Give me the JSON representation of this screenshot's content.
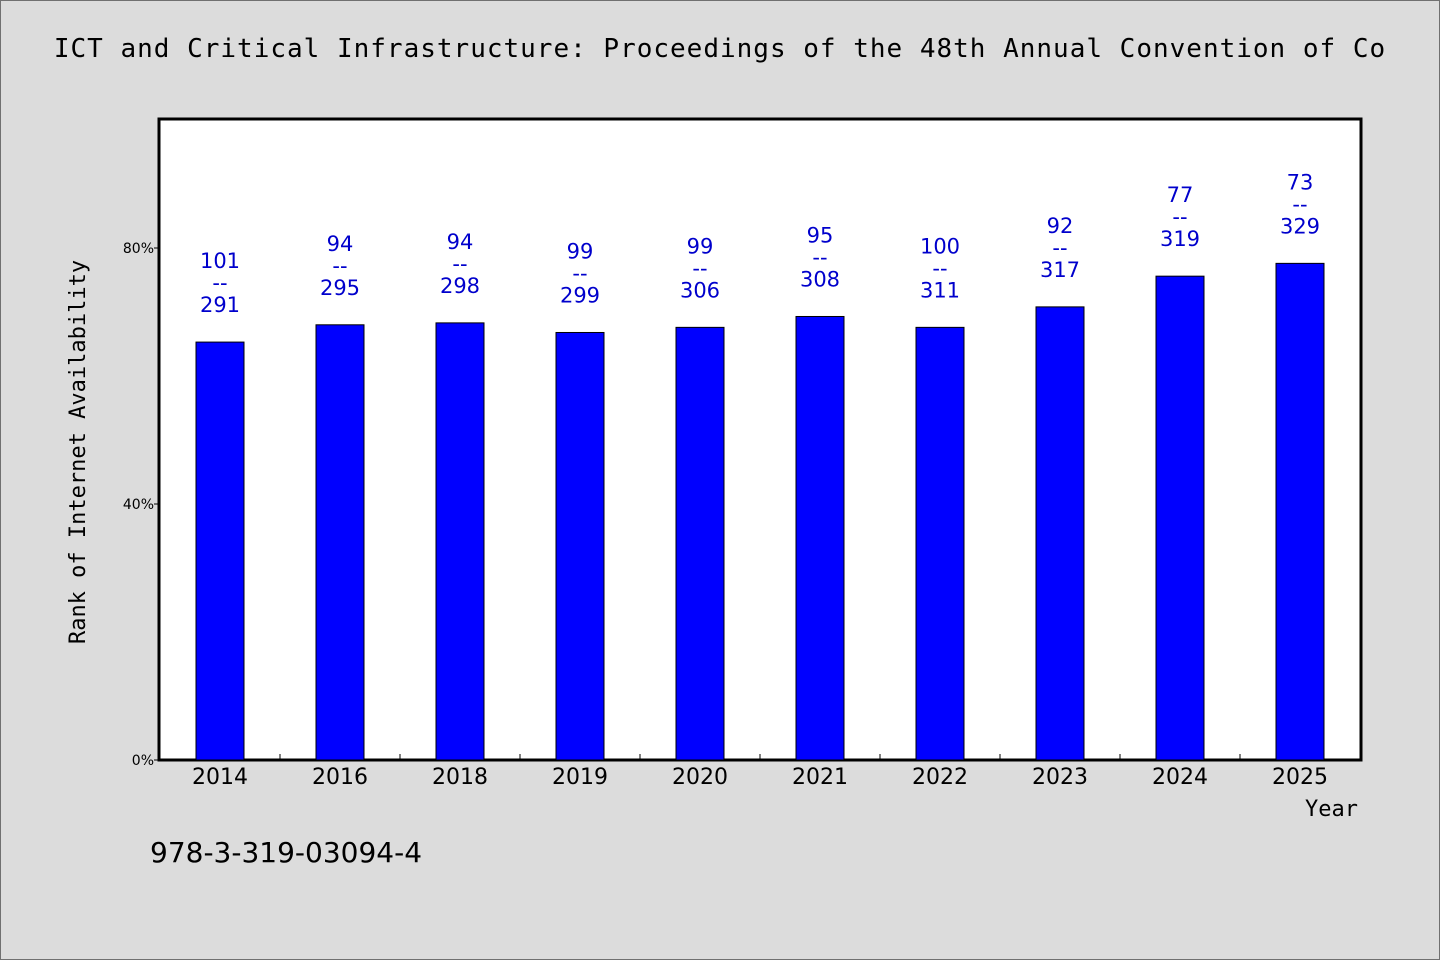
{
  "title": "ICT and Critical Infrastructure: Proceedings of the 48th Annual Convention of Co",
  "footnote": "978-3-319-03094-4",
  "colors": {
    "bar": "#0000ff",
    "label": "#0000cc",
    "background": "#dcdcdc",
    "plot": "#ffffff"
  },
  "chart_data": {
    "type": "bar",
    "title": "ICT and Critical Infrastructure: Proceedings of the 48th Annual Convention of Co",
    "xlabel": "Year",
    "ylabel": "Rank of Internet Availability",
    "categories": [
      "2014",
      "2016",
      "2018",
      "2019",
      "2020",
      "2021",
      "2022",
      "2023",
      "2024",
      "2025"
    ],
    "series": [
      {
        "values": [
          65.3,
          68.0,
          68.3,
          66.8,
          67.6,
          69.3,
          67.6,
          70.8,
          75.6,
          77.6
        ],
        "rank": [
          101,
          94,
          94,
          99,
          99,
          95,
          100,
          92,
          77,
          73
        ],
        "total": [
          291,
          295,
          298,
          299,
          306,
          308,
          311,
          317,
          319,
          329
        ]
      }
    ],
    "ylim": [
      0,
      100
    ],
    "yticks": [
      0,
      40,
      80
    ],
    "ytick_labels": [
      "0%",
      "40%",
      "80%"
    ],
    "label_separator": "--",
    "grid": false,
    "legend": "none"
  }
}
